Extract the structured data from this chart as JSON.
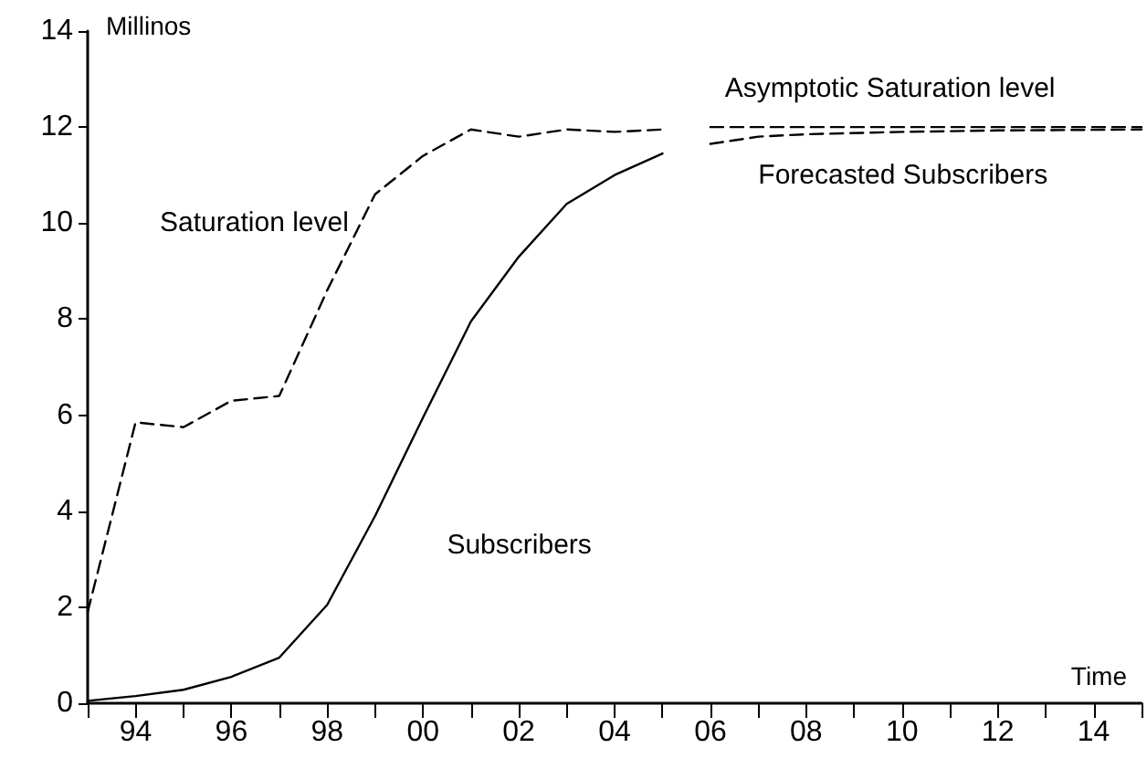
{
  "chart_data": {
    "type": "line",
    "xlabel": "Time",
    "ylabel": "Millinos",
    "xlim": [
      1993,
      2015
    ],
    "ylim": [
      0,
      14
    ],
    "yticks": [
      0,
      2,
      4,
      6,
      8,
      10,
      12,
      14
    ],
    "xticks": [
      {
        "value": 1993,
        "label": null
      },
      {
        "value": 1994,
        "label": "94"
      },
      {
        "value": 1995,
        "label": null
      },
      {
        "value": 1996,
        "label": "96"
      },
      {
        "value": 1997,
        "label": null
      },
      {
        "value": 1998,
        "label": "98"
      },
      {
        "value": 1999,
        "label": null
      },
      {
        "value": 2000,
        "label": "00"
      },
      {
        "value": 2001,
        "label": null
      },
      {
        "value": 2002,
        "label": "02"
      },
      {
        "value": 2003,
        "label": null
      },
      {
        "value": 2004,
        "label": "04"
      },
      {
        "value": 2005,
        "label": null
      },
      {
        "value": 2006,
        "label": "06"
      },
      {
        "value": 2007,
        "label": null
      },
      {
        "value": 2008,
        "label": "08"
      },
      {
        "value": 2009,
        "label": null
      },
      {
        "value": 2010,
        "label": "10"
      },
      {
        "value": 2011,
        "label": null
      },
      {
        "value": 2012,
        "label": "12"
      },
      {
        "value": 2013,
        "label": null
      },
      {
        "value": 2014,
        "label": "14"
      },
      {
        "value": 2015,
        "label": null
      }
    ],
    "grid": false,
    "legend": false,
    "marker": "none",
    "series": [
      {
        "name": "Saturation level",
        "color": "#000000",
        "line_style": "dashed",
        "x": [
          1993,
          1994,
          1995,
          1996,
          1997,
          1998,
          1999,
          2000,
          2001,
          2002,
          2003,
          2004,
          2005
        ],
        "values": [
          1.9,
          5.85,
          5.75,
          6.3,
          6.4,
          8.6,
          10.6,
          11.4,
          11.95,
          11.8,
          11.95,
          11.9,
          11.95
        ]
      },
      {
        "name": "Subscribers",
        "color": "#000000",
        "line_style": "solid",
        "x": [
          1993,
          1994,
          1995,
          1996,
          1997,
          1998,
          1999,
          2000,
          2001,
          2002,
          2003,
          2004,
          2005
        ],
        "values": [
          0.05,
          0.15,
          0.28,
          0.55,
          0.95,
          2.05,
          3.9,
          5.95,
          7.95,
          9.3,
          10.4,
          11.0,
          11.45
        ]
      },
      {
        "name": "Asymptotic Saturation level",
        "color": "#000000",
        "line_style": "dashed",
        "x": [
          2006,
          2015
        ],
        "values": [
          12.0,
          12.0
        ]
      },
      {
        "name": "Forecasted Subscribers",
        "color": "#000000",
        "line_style": "dashed",
        "x": [
          2006,
          2007,
          2008,
          2010,
          2012,
          2015
        ],
        "values": [
          11.65,
          11.8,
          11.85,
          11.9,
          11.93,
          11.95
        ]
      }
    ]
  }
}
